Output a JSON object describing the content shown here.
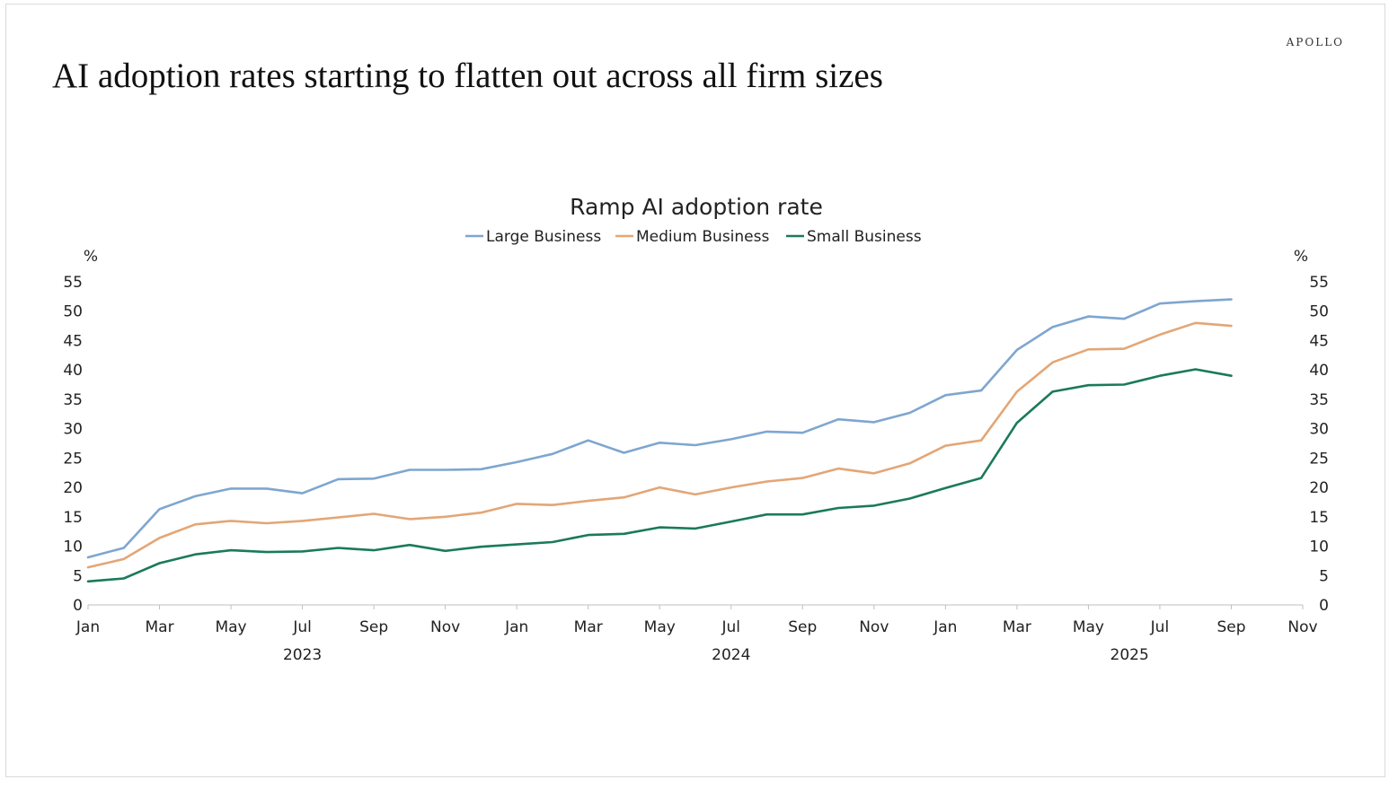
{
  "page": {
    "brand": "APOLLO",
    "headline": "AI adoption rates starting to flatten out across all firm sizes"
  },
  "chart_data": {
    "type": "line",
    "title": "Ramp AI adoption rate",
    "ylabel_left": "%",
    "ylabel_right": "%",
    "ylim": [
      0,
      55
    ],
    "yticks": [
      0,
      5,
      10,
      15,
      20,
      25,
      30,
      35,
      40,
      45,
      50,
      55
    ],
    "x_axis": {
      "start": "2023-01",
      "end": "2025-11",
      "month_ticks": [
        "Jan",
        "Mar",
        "May",
        "Jul",
        "Sep",
        "Nov",
        "Jan",
        "Mar",
        "May",
        "Jul",
        "Sep",
        "Nov",
        "Jan",
        "Mar",
        "May",
        "Jul",
        "Sep",
        "Nov"
      ],
      "year_labels": [
        "2023",
        "2024",
        "2025"
      ]
    },
    "grid": false,
    "legend_position": "top-center",
    "x": [
      "2023-01",
      "2023-02",
      "2023-03",
      "2023-04",
      "2023-05",
      "2023-06",
      "2023-07",
      "2023-08",
      "2023-09",
      "2023-10",
      "2023-11",
      "2023-12",
      "2024-01",
      "2024-02",
      "2024-03",
      "2024-04",
      "2024-05",
      "2024-06",
      "2024-07",
      "2024-08",
      "2024-09",
      "2024-10",
      "2024-11",
      "2024-12",
      "2025-01",
      "2025-02",
      "2025-03",
      "2025-04",
      "2025-05",
      "2025-06",
      "2025-07",
      "2025-08",
      "2025-09"
    ],
    "series": [
      {
        "name": "Large Business",
        "color": "#7ea6d0",
        "values": [
          8.1,
          9.7,
          16.3,
          18.5,
          19.8,
          19.8,
          19.0,
          21.4,
          21.5,
          23.0,
          23.0,
          23.1,
          24.3,
          25.7,
          28.0,
          25.9,
          27.6,
          27.2,
          28.2,
          29.5,
          29.3,
          31.6,
          31.1,
          32.7,
          35.7,
          36.5,
          43.4,
          47.3,
          49.1,
          48.7,
          51.3,
          51.7,
          52.0
        ]
      },
      {
        "name": "Medium Business",
        "color": "#e3a676",
        "values": [
          6.4,
          7.8,
          11.4,
          13.7,
          14.3,
          13.9,
          14.3,
          14.9,
          15.5,
          14.6,
          15.0,
          15.7,
          17.2,
          17.0,
          17.7,
          18.3,
          20.0,
          18.8,
          20.0,
          21.0,
          21.6,
          23.2,
          22.4,
          24.1,
          27.1,
          28.0,
          36.3,
          41.3,
          43.5,
          43.6,
          46.0,
          48.0,
          47.5
        ]
      },
      {
        "name": "Small Business",
        "color": "#1a7a5c",
        "values": [
          4.0,
          4.5,
          7.1,
          8.6,
          9.3,
          9.0,
          9.1,
          9.7,
          9.3,
          10.2,
          9.2,
          9.9,
          10.3,
          10.7,
          11.9,
          12.1,
          13.2,
          13.0,
          14.2,
          15.4,
          15.4,
          16.5,
          16.9,
          18.1,
          19.9,
          21.6,
          31.0,
          36.3,
          37.4,
          37.5,
          39.0,
          40.1,
          39.0
        ]
      }
    ]
  }
}
